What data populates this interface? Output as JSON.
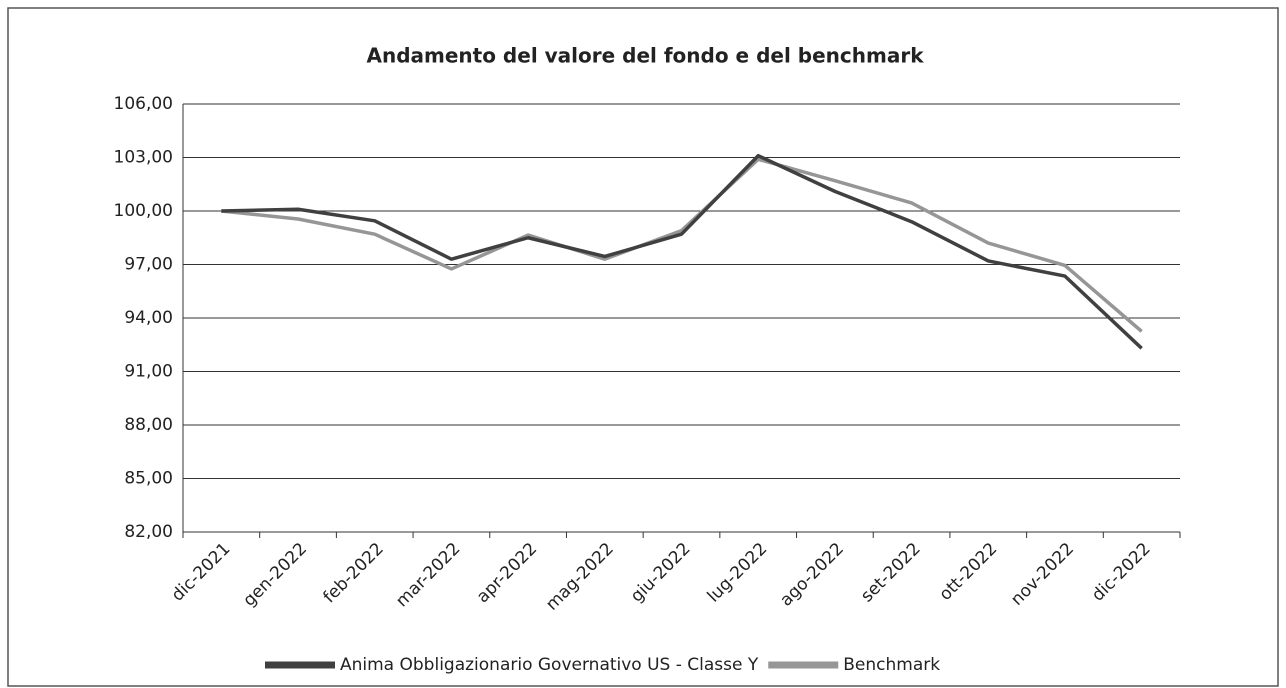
{
  "chart_data": {
    "type": "line",
    "title": "Andamento del valore del fondo e del benchmark",
    "categories": [
      "dic-2021",
      "gen-2022",
      "feb-2022",
      "mar-2022",
      "apr-2022",
      "mag-2022",
      "giu-2022",
      "lug-2022",
      "ago-2022",
      "set-2022",
      "ott-2022",
      "nov-2022",
      "dic-2022"
    ],
    "series": [
      {
        "name": "Anima Obbligazionario Governativo US - Classe Y",
        "color": "#404040",
        "values": [
          100.0,
          100.1,
          99.45,
          97.3,
          98.5,
          97.45,
          98.7,
          103.1,
          101.1,
          99.4,
          97.2,
          96.35,
          92.3
        ]
      },
      {
        "name": "Benchmark",
        "color": "#969696",
        "values": [
          100.0,
          99.55,
          98.7,
          96.75,
          98.65,
          97.3,
          98.9,
          102.9,
          101.7,
          100.45,
          98.2,
          96.95,
          93.25
        ]
      }
    ],
    "ylim": [
      82,
      106
    ],
    "yticks": [
      {
        "value": 82,
        "label": "82,00"
      },
      {
        "value": 85,
        "label": "85,00"
      },
      {
        "value": 88,
        "label": "88,00"
      },
      {
        "value": 91,
        "label": "91,00"
      },
      {
        "value": 94,
        "label": "94,00"
      },
      {
        "value": 97,
        "label": "97,00"
      },
      {
        "value": 100,
        "label": "100,00"
      },
      {
        "value": 103,
        "label": "103,00"
      },
      {
        "value": 106,
        "label": "106,00"
      }
    ],
    "grid": true,
    "legend": "bottom"
  }
}
